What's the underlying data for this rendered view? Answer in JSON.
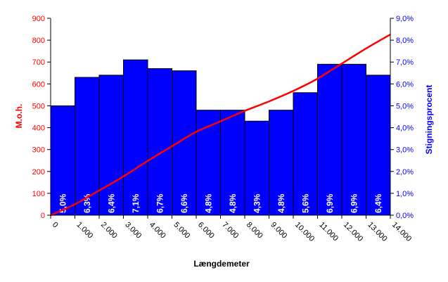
{
  "chart_data": {
    "type": "bar",
    "xlabel": "Længdemeter",
    "ylabel_left": "M.o.h.",
    "ylabel_right": "Stigningsprocent",
    "x_ticks": [
      "0",
      "1.000",
      "2.000",
      "3.000",
      "4.000",
      "5.000",
      "6.000",
      "7.000",
      "8.000",
      "9.000",
      "10.000",
      "11.000",
      "12.000",
      "13.000",
      "14.000"
    ],
    "y_left_ticks": [
      "0",
      "100",
      "200",
      "300",
      "400",
      "500",
      "600",
      "700",
      "800",
      "900"
    ],
    "y_right_ticks": [
      "0,0%",
      "1,0%",
      "2,0%",
      "3,0%",
      "4,0%",
      "5,0%",
      "6,0%",
      "7,0%",
      "8,0%",
      "9,0%"
    ],
    "y_left_range": [
      0,
      900
    ],
    "y_right_range": [
      0,
      9
    ],
    "x_range": [
      0,
      14000
    ],
    "bars": {
      "name": "Stigningsprocent",
      "x_start": [
        0,
        1000,
        2000,
        3000,
        4000,
        5000,
        6000,
        7000,
        8000,
        9000,
        10000,
        11000,
        12000,
        13000
      ],
      "width": 1000,
      "values": [
        5.0,
        6.3,
        6.4,
        7.1,
        6.7,
        6.6,
        4.8,
        4.8,
        4.3,
        4.8,
        5.6,
        6.9,
        6.9,
        6.4
      ],
      "labels": [
        "5,0%",
        "6,3%",
        "6,4%",
        "7,1%",
        "6,7%",
        "6,6%",
        "4,8%",
        "4,8%",
        "4,3%",
        "4,8%",
        "5,6%",
        "6,9%",
        "6,9%",
        "6,4%"
      ],
      "color": "#0000ff"
    },
    "line": {
      "name": "M.o.h.",
      "x": [
        0,
        1000,
        2000,
        3000,
        4000,
        5000,
        6000,
        7000,
        8000,
        9000,
        10000,
        11000,
        12000,
        13000,
        14000
      ],
      "y": [
        0,
        50,
        113,
        177,
        248,
        315,
        381,
        429,
        477,
        520,
        568,
        624,
        693,
        762,
        826
      ],
      "color": "#ff0000"
    },
    "colors": {
      "left_axis": "#ff0000",
      "right_axis": "#0000ff",
      "bar_border": "#000000"
    }
  }
}
